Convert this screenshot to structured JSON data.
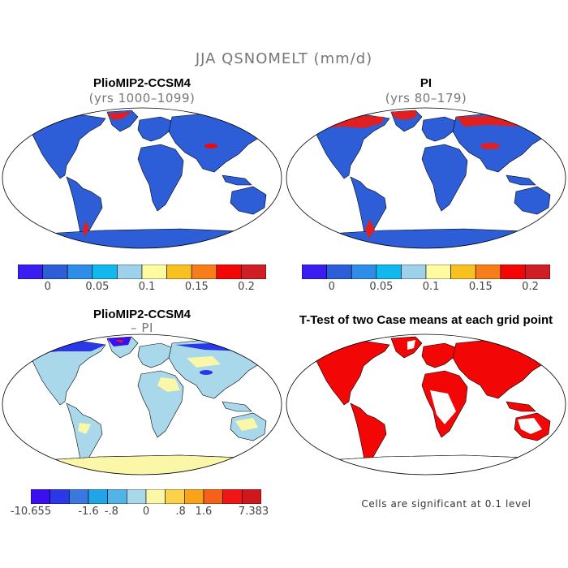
{
  "title": "JJA QSNOMELT (mm/d)",
  "panels": {
    "top_left": {
      "title": "PlioMIP2-CCSM4",
      "subtitle": "(yrs 1000–1099)"
    },
    "top_right": {
      "title": "PI",
      "subtitle": "(yrs 80–179)"
    },
    "bottom_left": {
      "title": "PlioMIP2-CCSM4",
      "subtitle": "– PI"
    },
    "bottom_right": {
      "title": "T-Test of two Case means at each grid point"
    }
  },
  "colorbar_top": {
    "colors": [
      "#3a1df0",
      "#2d5ed8",
      "#2e8de8",
      "#10b8ee",
      "#9ed2ea",
      "#fefba0",
      "#f8c020",
      "#f77c1a",
      "#f20606",
      "#d01e26"
    ],
    "labels": [
      "0",
      "0.05",
      "0.1",
      "0.15",
      "0.2"
    ]
  },
  "colorbar_bottom": {
    "colors": [
      "#3a10f0",
      "#2a38e8",
      "#3a78e0",
      "#20a6e6",
      "#50b4e8",
      "#a9d8ea",
      "#fbf7a8",
      "#fcd24a",
      "#f7a41a",
      "#f6611a",
      "#f01616",
      "#d0181c"
    ],
    "labels": [
      "-10.655",
      "-1.6",
      "-.8",
      "0",
      ".8",
      "1.6",
      "7.383"
    ]
  },
  "footnote": "Cells are significant at 0.1 level",
  "map_colors": {
    "ocean": "#ffffff",
    "land_base": "#2d5ed8",
    "melt_high": "#e02020",
    "diff_land": "#a9d8ea",
    "diff_yellow": "#fbf7a8",
    "diff_blue": "#2a38e8",
    "signif": "#f20606"
  }
}
